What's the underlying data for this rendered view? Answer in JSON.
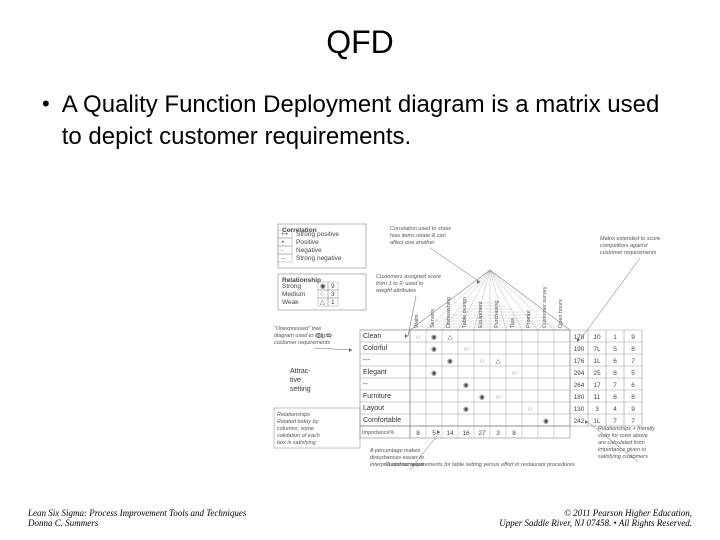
{
  "title": "QFD",
  "bullet": "A Quality Function Deployment diagram is a matrix used to depict customer requirements.",
  "diagram": {
    "correlation_legend": {
      "title": "Correlation",
      "rows": [
        {
          "sym": "++",
          "label": "Strong positive"
        },
        {
          "sym": "+",
          "label": "Positive"
        },
        {
          "sym": "-",
          "label": "Negative"
        },
        {
          "sym": "--",
          "label": "Strong negative"
        }
      ]
    },
    "relationship_legend": {
      "title": "Relationship",
      "rows": [
        {
          "name": "Strong",
          "sym": "◉",
          "val": "9"
        },
        {
          "name": "Medium",
          "sym": "○",
          "val": "3"
        },
        {
          "name": "Weak",
          "sym": "△",
          "val": "1"
        }
      ]
    },
    "columns": [
      "Waits",
      "Servers",
      "Dishwashing",
      "Table design",
      "Equipment",
      "Purchasing",
      "Tips",
      "Prompt",
      "Customer survey",
      "Open hours"
    ],
    "left_group": {
      "top_label": "CL =",
      "mid_label": "Attractive table setting"
    },
    "rows": [
      {
        "label": "Clean",
        "sym": [
          "○",
          "◉",
          "△",
          "",
          "",
          "",
          "",
          "",
          "",
          ""
        ],
        "scores": [
          "178",
          "10",
          "1",
          "9"
        ]
      },
      {
        "label": "Colorful",
        "sym": [
          "",
          "◉",
          "",
          "○",
          "",
          "",
          "",
          "",
          "",
          ""
        ],
        "scores": [
          "190",
          "7L",
          "5",
          "8"
        ]
      },
      {
        "label": "---",
        "sym": [
          "",
          "",
          "◉",
          "",
          "○",
          "△",
          "",
          "",
          "",
          ""
        ],
        "scores": [
          "176",
          "1L",
          "6",
          "7"
        ]
      },
      {
        "label": "Elegant",
        "sym": [
          "",
          "◉",
          "",
          "",
          "",
          "",
          "○",
          "",
          "",
          ""
        ],
        "scores": [
          "294",
          "25",
          "8",
          "5"
        ]
      },
      {
        "label": "--",
        "sym": [
          "",
          "",
          "",
          "◉",
          "",
          "",
          "",
          "",
          "",
          ""
        ],
        "scores": [
          "264",
          "17",
          "7",
          "6"
        ]
      },
      {
        "label": "Furniture",
        "sym": [
          "",
          "",
          "",
          "",
          "◉",
          "○",
          "",
          "",
          "",
          ""
        ],
        "scores": [
          "180",
          "11",
          "6",
          "8"
        ]
      },
      {
        "label": "Layout",
        "sym": [
          "",
          "",
          "",
          "◉",
          "",
          "",
          "",
          "○",
          "",
          ""
        ],
        "scores": [
          "130",
          "3",
          "4",
          "9"
        ]
      },
      {
        "label": "Comfortable",
        "sym": [
          "",
          "",
          "",
          "",
          "",
          "",
          "",
          "",
          "◉",
          ""
        ],
        "scores": [
          "242",
          "1L",
          "7",
          "7"
        ]
      }
    ],
    "importance_row": {
      "label": "Importance%",
      "vals": [
        "8",
        "5",
        "14",
        "16",
        "27",
        "3",
        "8",
        "",
        "",
        ""
      ]
    },
    "annotations": {
      "corr_note": "Correlation used to show how items relate & can affect one another",
      "matrix_note": "Matrix extended to score competitors against customer requirements",
      "customer_note": "Customers assigned score from 1 to 9; used to weight attributes",
      "tree_note": "\"Unexpressed\" tree diagram used to identify customer requirements",
      "percent_note": "A percentage makes disturbances easier to interpret and compare",
      "friendly_note": "Relationships + friendly visits for rows above are calculated from importance given to satisfying customers",
      "caption": "Customer requirements for table setting versus effort in restaurant procedures"
    },
    "box_note": "Relationships Related today by columns; some validation of each box is satisfying",
    "grid_color": "#888888",
    "line_color": "#666666",
    "text_color": "#444444",
    "bg": "#ffffff"
  },
  "footer": {
    "left_line1": "Lean Six Sigma: Process Improvement Tools and Techniques",
    "left_line2": "Donna C. Summers",
    "right_line1": "© 2011 Pearson Higher Education,",
    "right_line2": "Upper Saddle River, NJ 07458. • All Rights Reserved."
  }
}
